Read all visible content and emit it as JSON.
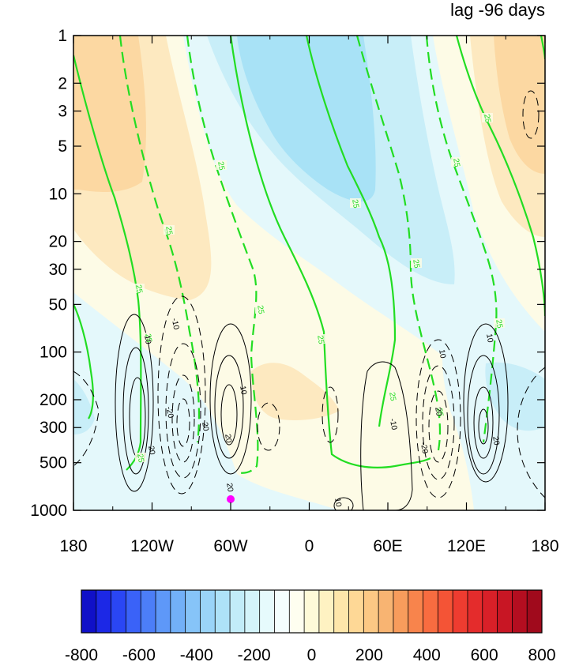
{
  "chart_data": {
    "type": "contour",
    "title_right": "lag -96 days",
    "x_axis": {
      "ticks": [
        -180,
        -120,
        -60,
        0,
        60,
        120,
        180
      ],
      "labels": [
        "180",
        "120W",
        "60W",
        "0",
        "60E",
        "120E",
        "180"
      ],
      "range": [
        -180,
        180
      ]
    },
    "y_axis": {
      "scale": "log",
      "reversed": true,
      "ticks": [
        1,
        2,
        3,
        5,
        10,
        20,
        30,
        50,
        100,
        200,
        300,
        500,
        1000
      ],
      "labels": [
        "1",
        "2",
        "3",
        "5",
        "10",
        "20",
        "30",
        "50",
        "100",
        "200",
        "300",
        "500",
        "1000"
      ],
      "range": [
        1,
        1000
      ]
    },
    "colorbar": {
      "levels": [
        -800,
        -750,
        -700,
        -650,
        -600,
        -550,
        -500,
        -450,
        -400,
        -350,
        -300,
        -250,
        -200,
        -150,
        -100,
        -50,
        0,
        50,
        100,
        150,
        200,
        250,
        300,
        350,
        400,
        450,
        500,
        550,
        600,
        650,
        700,
        750,
        800
      ],
      "labels": [
        "-800",
        "-600",
        "-400",
        "-200",
        "0",
        "200",
        "400",
        "600",
        "800"
      ],
      "label_values": [
        -800,
        -600,
        -400,
        -200,
        0,
        200,
        400,
        600,
        800
      ],
      "colors": [
        "#1010c8",
        "#1c28e6",
        "#2a46f4",
        "#3a62f8",
        "#4c7ef8",
        "#5e98f8",
        "#72b0f8",
        "#86c4f8",
        "#9ad4f8",
        "#aee2f8",
        "#c2ecf8",
        "#d4f4fa",
        "#e6fafc",
        "#f4fefe",
        "#fefef0",
        "#fefad8",
        "#fef2c2",
        "#fee6aa",
        "#fed896",
        "#fcc884",
        "#f8b472",
        "#f89c5c",
        "#f8844c",
        "#f86c40",
        "#f45436",
        "#ee3c30",
        "#e42c2c",
        "#d82028",
        "#c81624",
        "#b40e20",
        "#a00a1c"
      ]
    },
    "shaded_field": "anomaly (colour scale)",
    "green_contour_labels": [
      "25",
      "25",
      "25",
      "25",
      "25",
      "25",
      "25",
      "25",
      "25",
      "25",
      "25",
      "25",
      "25",
      "25"
    ],
    "black_contour_labels": [
      "-10",
      "10",
      "10",
      "-10",
      "10",
      "20",
      "20",
      "20",
      "-20",
      "10",
      "-20",
      "20",
      "20",
      "10",
      "20"
    ],
    "marker": {
      "lon": -60,
      "lev": 850,
      "color": "#ff00ff"
    }
  }
}
